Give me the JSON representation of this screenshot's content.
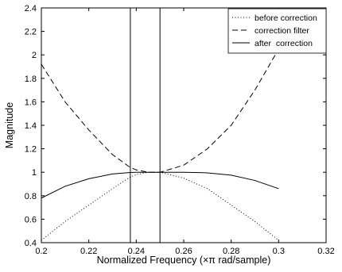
{
  "chart_data": {
    "type": "line",
    "title": "",
    "xlabel": "Normalized Frequency  (×π rad/sample)",
    "ylabel": "Magnitude",
    "xlim": [
      0.2,
      0.32
    ],
    "ylim": [
      0.4,
      2.4
    ],
    "xticks": [
      0.2,
      0.22,
      0.24,
      0.26,
      0.28,
      0.3,
      0.32
    ],
    "xtick_labels": [
      "0.2",
      "0.22",
      "0.24",
      "0.26",
      "0.28",
      "0.3",
      "0.32"
    ],
    "yticks": [
      0.4,
      0.6,
      0.8,
      1.0,
      1.2,
      1.4,
      1.6,
      1.8,
      2.0,
      2.2,
      2.4
    ],
    "ytick_labels": [
      "0.4",
      "0.6",
      "0.8",
      "1",
      "1.2",
      "1.4",
      "1.6",
      "1.8",
      "2",
      "2.2",
      "2.4"
    ],
    "grid": false,
    "legend_position": "top-right",
    "vertical_lines": [
      0.2375,
      0.25
    ],
    "series": [
      {
        "name": "before correction",
        "style": "dotted",
        "x": [
          0.2,
          0.21,
          0.22,
          0.23,
          0.2375,
          0.24,
          0.245,
          0.25,
          0.26,
          0.27,
          0.28,
          0.29,
          0.3
        ],
        "y": [
          0.42,
          0.58,
          0.72,
          0.86,
          0.96,
          0.98,
          1.0,
          1.0,
          0.95,
          0.86,
          0.72,
          0.58,
          0.42
        ]
      },
      {
        "name": "correction filter",
        "style": "dashed",
        "x": [
          0.2,
          0.21,
          0.22,
          0.23,
          0.2375,
          0.24,
          0.245,
          0.25,
          0.26,
          0.27,
          0.28,
          0.29,
          0.3
        ],
        "y": [
          1.92,
          1.6,
          1.36,
          1.15,
          1.04,
          1.02,
          1.0,
          1.0,
          1.06,
          1.2,
          1.4,
          1.7,
          2.05
        ]
      },
      {
        "name": "after  correction",
        "style": "solid",
        "x": [
          0.2,
          0.21,
          0.22,
          0.23,
          0.2375,
          0.24,
          0.245,
          0.25,
          0.26,
          0.27,
          0.28,
          0.29,
          0.3
        ],
        "y": [
          0.78,
          0.88,
          0.945,
          0.985,
          0.998,
          1.0,
          1.0,
          1.0,
          1.0,
          0.995,
          0.975,
          0.93,
          0.86
        ]
      }
    ]
  },
  "colors": {
    "line": "#000000",
    "background": "#ffffff"
  }
}
